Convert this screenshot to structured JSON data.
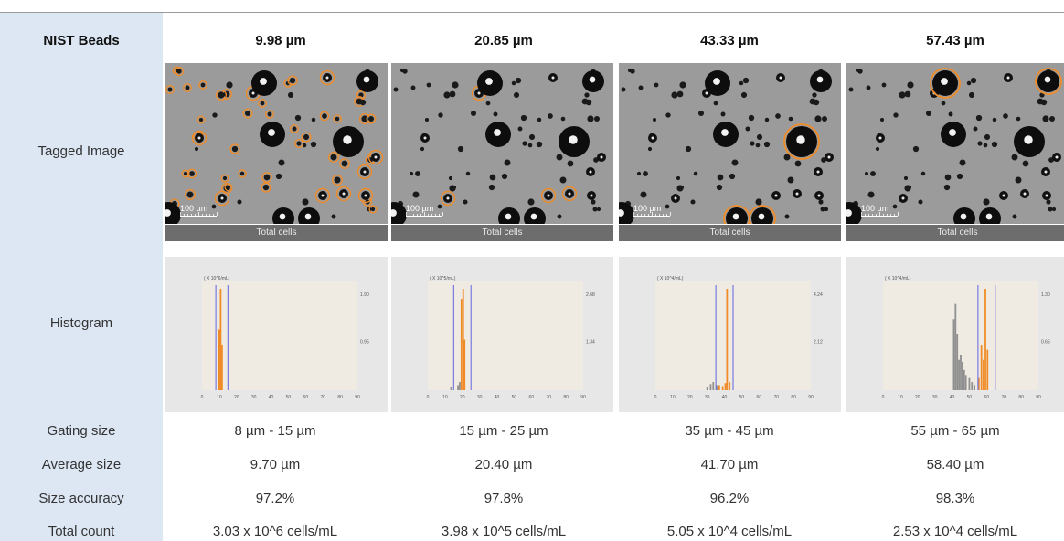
{
  "header": "NIST Beads",
  "row_labels": {
    "tagged": "Tagged Image",
    "histogram": "Histogram",
    "gating": "Gating size",
    "average": "Average size",
    "accuracy": "Size accuracy",
    "count": "Total count"
  },
  "columns": [
    {
      "size": "9.98 µm",
      "gating": "8 µm - 15 µm",
      "average": "9.70 µm",
      "accuracy": "97.2%",
      "count": "3.03 x 10^6 cells/mL",
      "caption": "Total cells",
      "scale_label": "100  µm",
      "hist": {
        "unit": "( X 10^6/mL)",
        "y_ticks": [
          "1.90",
          "0.95"
        ],
        "x_ticks": [
          "0",
          "10",
          "20",
          "30",
          "40",
          "50",
          "60",
          "70",
          "80",
          "90"
        ],
        "gate": [
          8,
          15
        ],
        "orange": [
          [
            10,
            0.6
          ],
          [
            10.8,
            1.0
          ],
          [
            11.6,
            0.45
          ]
        ],
        "gray": []
      }
    },
    {
      "size": "20.85 µm",
      "gating": "15 µm - 25 µm",
      "average": "20.40 µm",
      "accuracy": "97.8%",
      "count": "3.98 x 10^5 cells/mL",
      "caption": "Total cells",
      "scale_label": "100  µm",
      "hist": {
        "unit": "( X 10^5/mL)",
        "y_ticks": [
          "2.68",
          "1.34"
        ],
        "x_ticks": [
          "0",
          "10",
          "20",
          "30",
          "40",
          "50",
          "60",
          "70",
          "80",
          "90"
        ],
        "gate": [
          15,
          25
        ],
        "orange": [
          [
            19.5,
            0.9
          ],
          [
            20.5,
            1.0
          ],
          [
            21.3,
            0.5
          ]
        ],
        "gray": [
          [
            13.5,
            0.03
          ],
          [
            17.5,
            0.05
          ],
          [
            18.5,
            0.08
          ]
        ]
      }
    },
    {
      "size": "43.33 µm",
      "gating": "35 µm - 45 µm",
      "average": "41.70 µm",
      "accuracy": "96.2%",
      "count": "5.05 x 10^4 cells/mL",
      "caption": "Total cells",
      "scale_label": "100  µm",
      "hist": {
        "unit": "( X 10^4/mL)",
        "y_ticks": [
          "4.24",
          "2.12"
        ],
        "x_ticks": [
          "0",
          "10",
          "20",
          "30",
          "40",
          "50",
          "60",
          "70",
          "80",
          "90"
        ],
        "gate": [
          35,
          45
        ],
        "orange": [
          [
            37,
            0.05
          ],
          [
            39,
            0.04
          ],
          [
            40.5,
            0.07
          ],
          [
            41.5,
            1.0
          ],
          [
            43,
            0.08
          ]
        ],
        "gray": [
          [
            30,
            0.03
          ],
          [
            32,
            0.06
          ],
          [
            33.5,
            0.08
          ],
          [
            35.5,
            0.05
          ]
        ]
      }
    },
    {
      "size": "57.43 µm",
      "gating": "55 µm - 65 µm",
      "average": "58.40 µm",
      "accuracy": "98.3%",
      "count": "2.53 x 10^4 cells/mL",
      "caption": "Total cells",
      "scale_label": "100  µm",
      "hist": {
        "unit": "( X 10^4/mL)",
        "y_ticks": [
          "1.30",
          "0.65"
        ],
        "x_ticks": [
          "0",
          "10",
          "20",
          "30",
          "40",
          "50",
          "60",
          "70",
          "80",
          "90"
        ],
        "gate": [
          55,
          65
        ],
        "orange": [
          [
            55.5,
            0.12
          ],
          [
            57,
            0.45
          ],
          [
            58.2,
            0.3
          ],
          [
            59.3,
            1.0
          ],
          [
            60.5,
            0.4
          ]
        ],
        "gray": [
          [
            41,
            0.7
          ],
          [
            42,
            0.85
          ],
          [
            43,
            0.55
          ],
          [
            44,
            0.3
          ],
          [
            45,
            0.35
          ],
          [
            46,
            0.28
          ],
          [
            47,
            0.2
          ],
          [
            48,
            0.15
          ],
          [
            50,
            0.12
          ],
          [
            51.5,
            0.08
          ],
          [
            53,
            0.05
          ]
        ]
      }
    }
  ],
  "colors": {
    "sidebar": "#dce7f3",
    "gate_line": "#6f6fe0",
    "orange_bar": "#f08c28",
    "gray_bar": "#8f8f8f",
    "tag_ring": "#f08c28"
  }
}
